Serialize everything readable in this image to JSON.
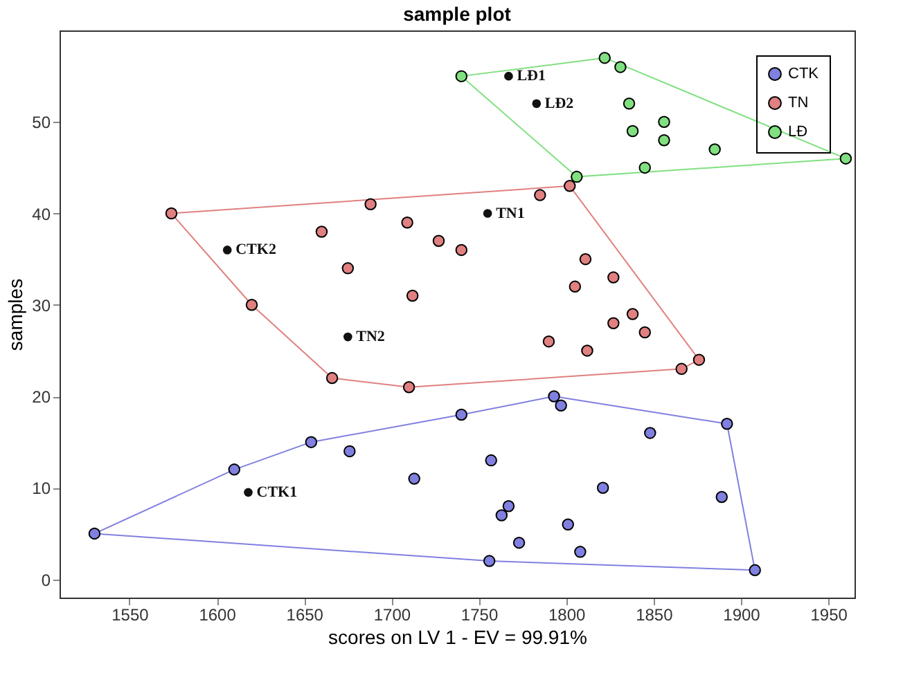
{
  "chart_data": {
    "type": "scatter",
    "title": "sample plot",
    "xlabel": "scores on LV 1 - EV = 99.91%",
    "ylabel": "samples",
    "xlim": [
      1510,
      1965
    ],
    "ylim": [
      -2,
      60
    ],
    "xticks": [
      1550,
      1600,
      1650,
      1700,
      1750,
      1800,
      1850,
      1900,
      1950
    ],
    "yticks": [
      0,
      10,
      20,
      30,
      40,
      50
    ],
    "grid": false,
    "legend": "top right",
    "marker": "circle",
    "series": [
      {
        "name": "CTK",
        "color": "#8080e0",
        "x": [
          1530,
          1610,
          1654,
          1740,
          1793,
          1797,
          1892,
          1908,
          1756,
          1676,
          1713,
          1757,
          1848,
          1821,
          1889,
          1767,
          1763,
          1801,
          1773,
          1808
        ],
        "values": [
          5,
          12,
          15,
          18,
          20,
          19,
          17,
          1,
          2,
          14,
          11,
          13,
          16,
          10,
          9,
          8,
          7,
          6,
          4,
          3
        ]
      },
      {
        "name": "TN",
        "color": "#e08080",
        "x": [
          1574,
          1785,
          1802,
          1876,
          1866,
          1710,
          1666,
          1620,
          1688,
          1660,
          1709,
          1727,
          1740,
          1675,
          1712,
          1811,
          1827,
          1805,
          1838,
          1845,
          1827,
          1790,
          1812
        ],
        "values": [
          40,
          42,
          43,
          24,
          23,
          21,
          22,
          30,
          41,
          38,
          39,
          37,
          36,
          34,
          31,
          35,
          33,
          32,
          29,
          27,
          28,
          26,
          25
        ]
      },
      {
        "name": "LĐ",
        "color": "#80e080",
        "x": [
          1740,
          1822,
          1831,
          1960,
          1806,
          1836,
          1856,
          1838,
          1856,
          1885,
          1845
        ],
        "values": [
          55,
          57,
          56,
          46,
          44,
          52,
          50,
          49,
          48,
          47,
          45
        ]
      },
      {
        "type": "line",
        "marker": "none",
        "color": "#8080e0",
        "x": [
          1530,
          1610,
          1654,
          1740,
          1793,
          1892,
          1908
        ],
        "values": [
          5,
          12,
          15,
          18,
          20,
          17,
          1
        ]
      },
      {
        "type": "line",
        "marker": "none",
        "color": "#8080e0",
        "x": [
          1530,
          1756,
          1908
        ],
        "values": [
          5,
          2,
          1
        ]
      },
      {
        "type": "line",
        "marker": "none",
        "color": "#e08080",
        "x": [
          1574,
          1802,
          1876
        ],
        "values": [
          40,
          43,
          24
        ]
      },
      {
        "type": "line",
        "marker": "none",
        "color": "#e08080",
        "x": [
          1574,
          1620,
          1666,
          1710,
          1866,
          1876
        ],
        "values": [
          40,
          30,
          22,
          21,
          23,
          24
        ]
      },
      {
        "type": "line",
        "marker": "none",
        "color": "#80e080",
        "x": [
          1740,
          1822,
          1960
        ],
        "values": [
          55,
          57,
          46
        ]
      },
      {
        "type": "line",
        "marker": "none",
        "color": "#80e080",
        "x": [
          1740,
          1806,
          1960
        ],
        "values": [
          55,
          44,
          46
        ]
      }
    ],
    "annotations": [
      {
        "text": "LĐ1",
        "x": 1767,
        "y": 55
      },
      {
        "text": "LĐ2",
        "x": 1783,
        "y": 52
      },
      {
        "text": "TN1",
        "x": 1755,
        "y": 40
      },
      {
        "text": "TN2",
        "x": 1675,
        "y": 26.5
      },
      {
        "text": "CTK2",
        "x": 1606,
        "y": 36
      },
      {
        "text": "CTK1",
        "x": 1618,
        "y": 9.5
      }
    ]
  }
}
